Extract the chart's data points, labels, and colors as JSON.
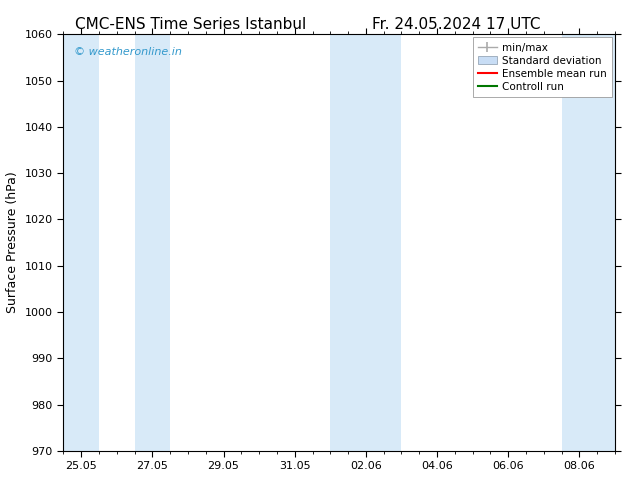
{
  "title_left": "CMC-ENS Time Series Istanbul",
  "title_right": "Fr. 24.05.2024 17 UTC",
  "ylabel": "Surface Pressure (hPa)",
  "ylim": [
    970,
    1060
  ],
  "yticks": [
    970,
    980,
    990,
    1000,
    1010,
    1020,
    1030,
    1040,
    1050,
    1060
  ],
  "xtick_labels": [
    "25.05",
    "27.05",
    "29.05",
    "31.05",
    "02.06",
    "04.06",
    "06.06",
    "08.06"
  ],
  "xtick_positions": [
    0,
    2,
    4,
    6,
    8,
    10,
    12,
    14
  ],
  "xlim": [
    -0.5,
    15.0
  ],
  "watermark": "© weatheronline.in",
  "watermark_color": "#3399cc",
  "background_color": "#ffffff",
  "plot_bg_color": "#ffffff",
  "shaded_bands": [
    {
      "x_start": -0.5,
      "x_end": 0.5,
      "color": "#d8eaf8"
    },
    {
      "x_start": 1.5,
      "x_end": 2.5,
      "color": "#d8eaf8"
    },
    {
      "x_start": 7.0,
      "x_end": 9.0,
      "color": "#d8eaf8"
    },
    {
      "x_start": 13.5,
      "x_end": 15.0,
      "color": "#d8eaf8"
    }
  ],
  "legend_entries": [
    {
      "label": "min/max",
      "type": "errorbar",
      "color": "#aaaaaa"
    },
    {
      "label": "Standard deviation",
      "type": "fill",
      "color": "#c8ddf5"
    },
    {
      "label": "Ensemble mean run",
      "type": "line",
      "color": "#ff0000"
    },
    {
      "label": "Controll run",
      "type": "line",
      "color": "#007700"
    }
  ],
  "title_fontsize": 11,
  "axis_label_fontsize": 9,
  "tick_fontsize": 8,
  "legend_fontsize": 7.5,
  "watermark_fontsize": 8
}
